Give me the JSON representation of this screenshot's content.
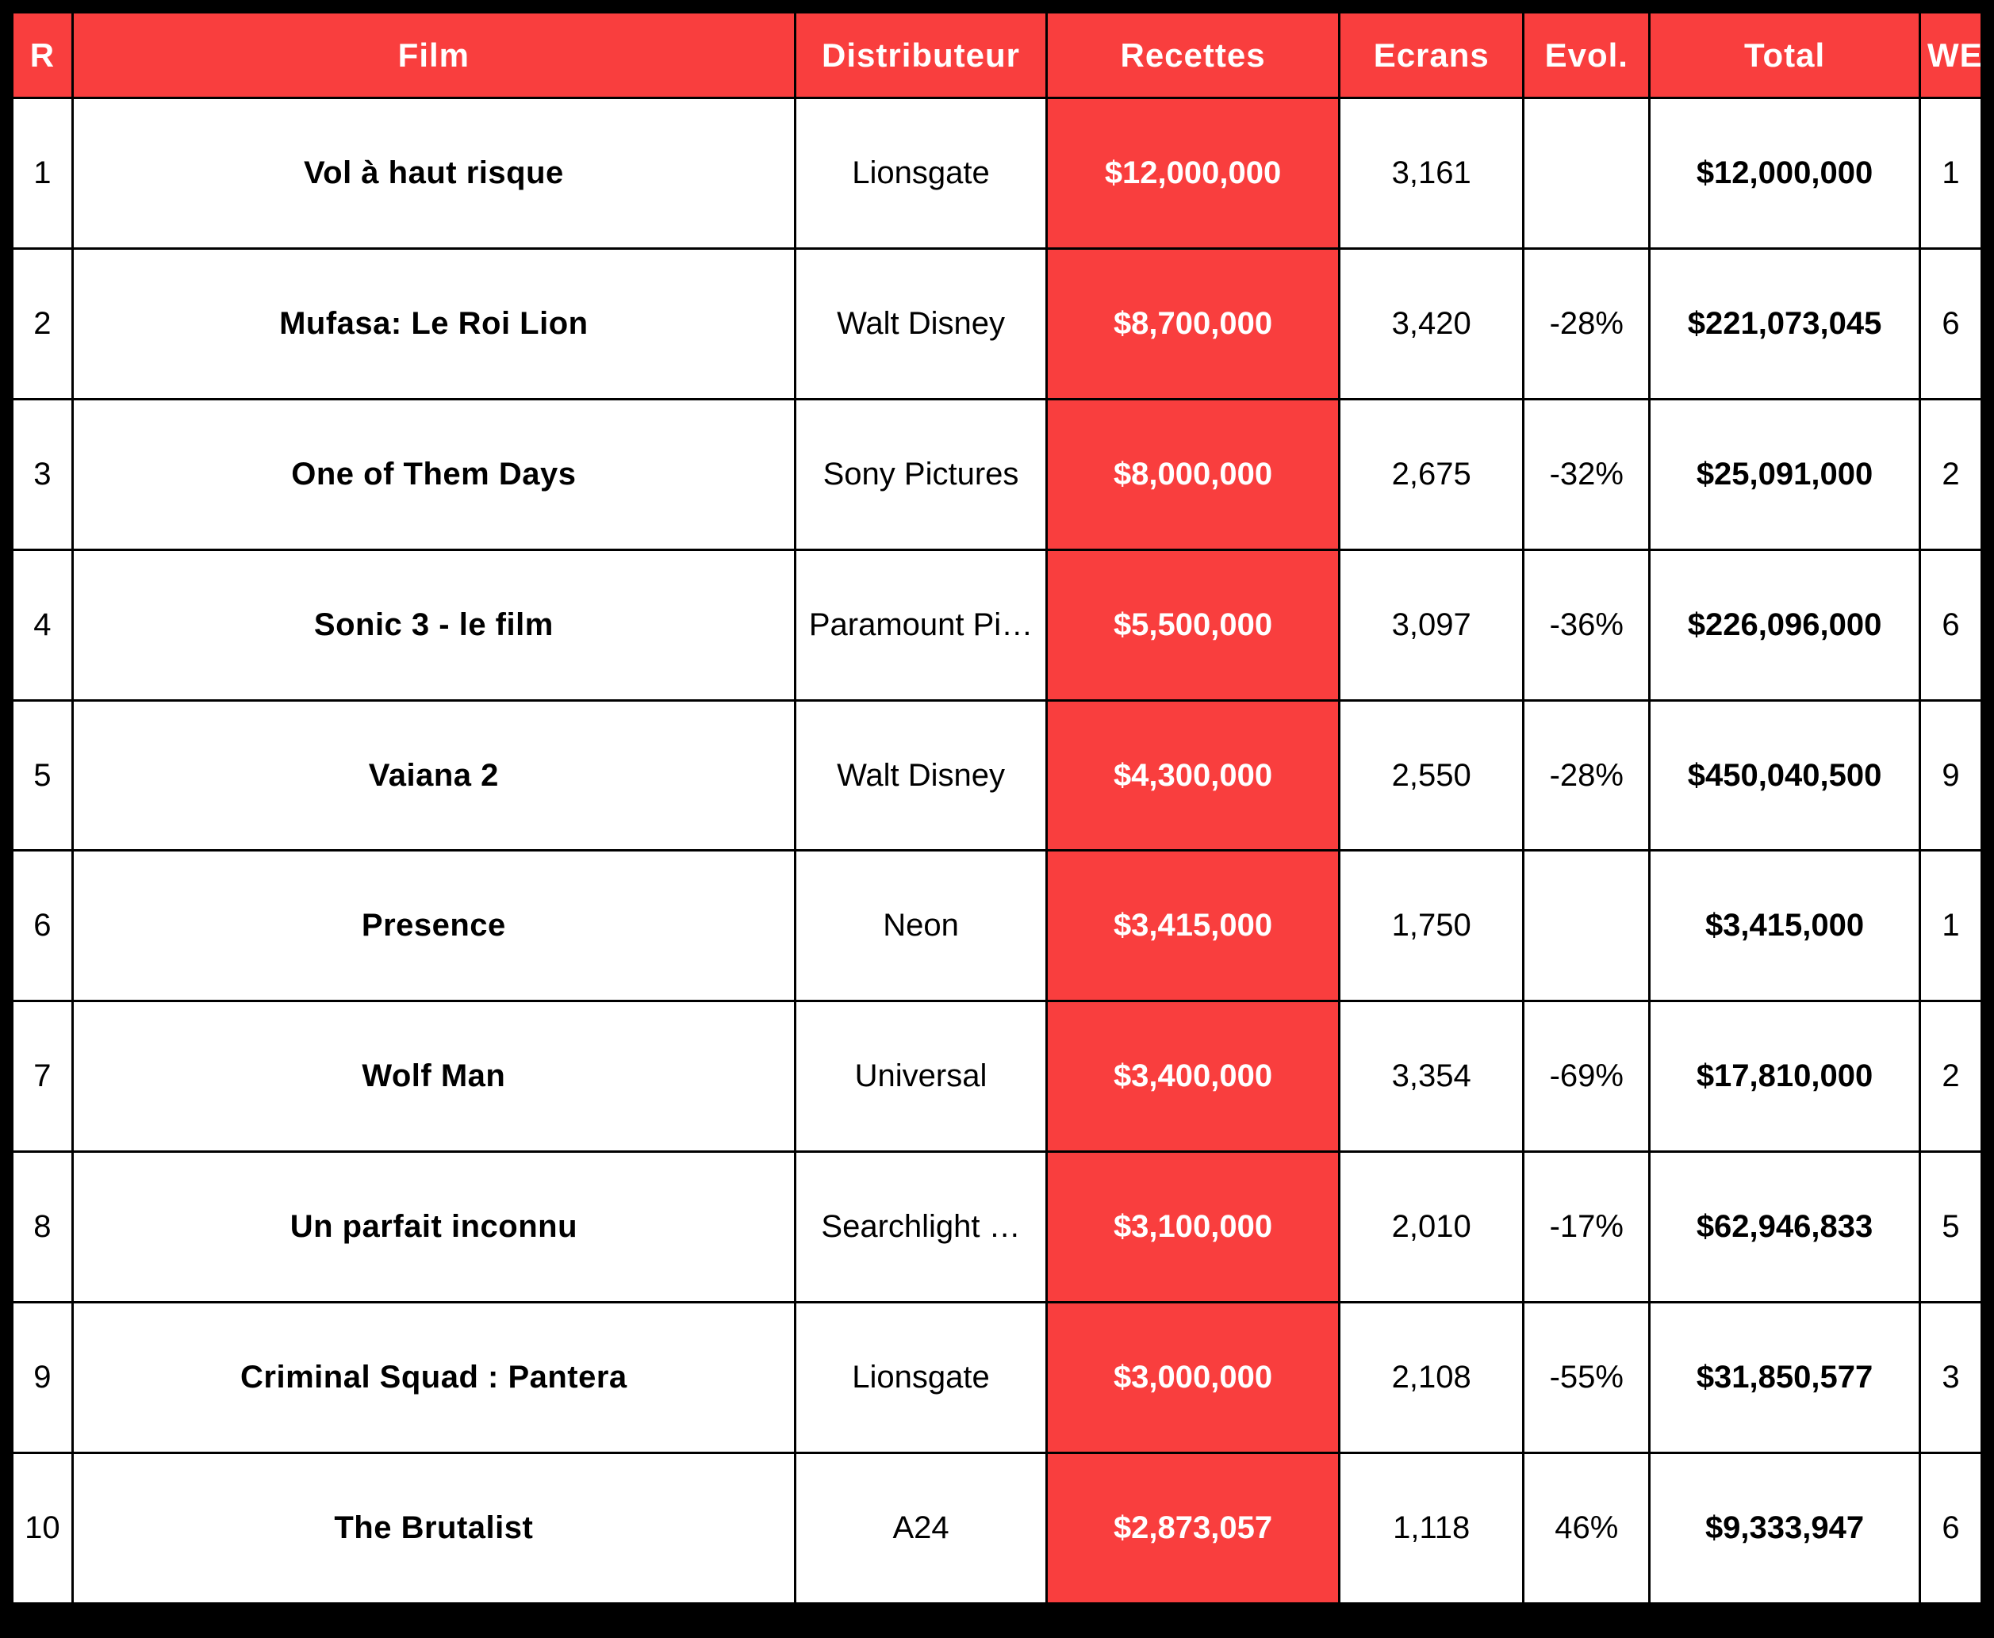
{
  "table": {
    "colors": {
      "accent_red": "#F93E3E",
      "header_text": "#FFFFFF",
      "body_text": "#000000",
      "border": "#000000"
    },
    "columns": [
      {
        "key": "rank",
        "label": "R"
      },
      {
        "key": "film",
        "label": "Film"
      },
      {
        "key": "distributor",
        "label": "Distributeur"
      },
      {
        "key": "revenue",
        "label": "Recettes"
      },
      {
        "key": "screens",
        "label": "Ecrans"
      },
      {
        "key": "evolution",
        "label": "Evol."
      },
      {
        "key": "total",
        "label": "Total"
      },
      {
        "key": "we",
        "label": "WE"
      }
    ],
    "rows": [
      {
        "rank": "1",
        "film": "Vol à haut risque",
        "distributor": "Lionsgate",
        "revenue": "$12,000,000",
        "screens": "3,161",
        "evolution": "",
        "total": "$12,000,000",
        "we": "1"
      },
      {
        "rank": "2",
        "film": "Mufasa: Le Roi Lion",
        "distributor": "Walt Disney",
        "revenue": "$8,700,000",
        "screens": "3,420",
        "evolution": "-28%",
        "total": "$221,073,045",
        "we": "6"
      },
      {
        "rank": "3",
        "film": "One of Them Days",
        "distributor": "Sony Pictures",
        "revenue": "$8,000,000",
        "screens": "2,675",
        "evolution": "-32%",
        "total": "$25,091,000",
        "we": "2"
      },
      {
        "rank": "4",
        "film": "Sonic 3 - le film",
        "distributor": "Paramount Pi…",
        "revenue": "$5,500,000",
        "screens": "3,097",
        "evolution": "-36%",
        "total": "$226,096,000",
        "we": "6"
      },
      {
        "rank": "5",
        "film": "Vaiana 2",
        "distributor": "Walt Disney",
        "revenue": "$4,300,000",
        "screens": "2,550",
        "evolution": "-28%",
        "total": "$450,040,500",
        "we": "9"
      },
      {
        "rank": "6",
        "film": "Presence",
        "distributor": "Neon",
        "revenue": "$3,415,000",
        "screens": "1,750",
        "evolution": "",
        "total": "$3,415,000",
        "we": "1"
      },
      {
        "rank": "7",
        "film": "Wolf Man",
        "distributor": "Universal",
        "revenue": "$3,400,000",
        "screens": "3,354",
        "evolution": "-69%",
        "total": "$17,810,000",
        "we": "2"
      },
      {
        "rank": "8",
        "film": "Un parfait inconnu",
        "distributor": "Searchlight …",
        "revenue": "$3,100,000",
        "screens": "2,010",
        "evolution": "-17%",
        "total": "$62,946,833",
        "we": "5"
      },
      {
        "rank": "9",
        "film": "Criminal Squad : Pantera",
        "distributor": "Lionsgate",
        "revenue": "$3,000,000",
        "screens": "2,108",
        "evolution": "-55%",
        "total": "$31,850,577",
        "we": "3"
      },
      {
        "rank": "10",
        "film": "The Brutalist",
        "distributor": "A24",
        "revenue": "$2,873,057",
        "screens": "1,118",
        "evolution": "46%",
        "total": "$9,333,947",
        "we": "6"
      }
    ]
  },
  "chart_data": {
    "type": "table",
    "title": "",
    "columns": [
      "R",
      "Film",
      "Distributeur",
      "Recettes",
      "Ecrans",
      "Evol.",
      "Total",
      "WE"
    ],
    "rows": [
      [
        "1",
        "Vol à haut risque",
        "Lionsgate",
        "$12,000,000",
        "3,161",
        "",
        "$12,000,000",
        "1"
      ],
      [
        "2",
        "Mufasa: Le Roi Lion",
        "Walt Disney",
        "$8,700,000",
        "3,420",
        "-28%",
        "$221,073,045",
        "6"
      ],
      [
        "3",
        "One of Them Days",
        "Sony Pictures",
        "$8,000,000",
        "2,675",
        "-32%",
        "$25,091,000",
        "2"
      ],
      [
        "4",
        "Sonic 3 - le film",
        "Paramount Pi…",
        "$5,500,000",
        "3,097",
        "-36%",
        "$226,096,000",
        "6"
      ],
      [
        "5",
        "Vaiana 2",
        "Walt Disney",
        "$4,300,000",
        "2,550",
        "-28%",
        "$450,040,500",
        "9"
      ],
      [
        "6",
        "Presence",
        "Neon",
        "$3,415,000",
        "1,750",
        "",
        "$3,415,000",
        "1"
      ],
      [
        "7",
        "Wolf Man",
        "Universal",
        "$3,400,000",
        "3,354",
        "-69%",
        "$17,810,000",
        "2"
      ],
      [
        "8",
        "Un parfait inconnu",
        "Searchlight …",
        "$3,100,000",
        "2,010",
        "-17%",
        "$62,946,833",
        "5"
      ],
      [
        "9",
        "Criminal Squad : Pantera",
        "Lionsgate",
        "$3,000,000",
        "2,108",
        "-55%",
        "$31,850,577",
        "3"
      ],
      [
        "10",
        "The Brutalist",
        "A24",
        "$2,873,057",
        "1,118",
        "46%",
        "$9,333,947",
        "6"
      ]
    ]
  }
}
